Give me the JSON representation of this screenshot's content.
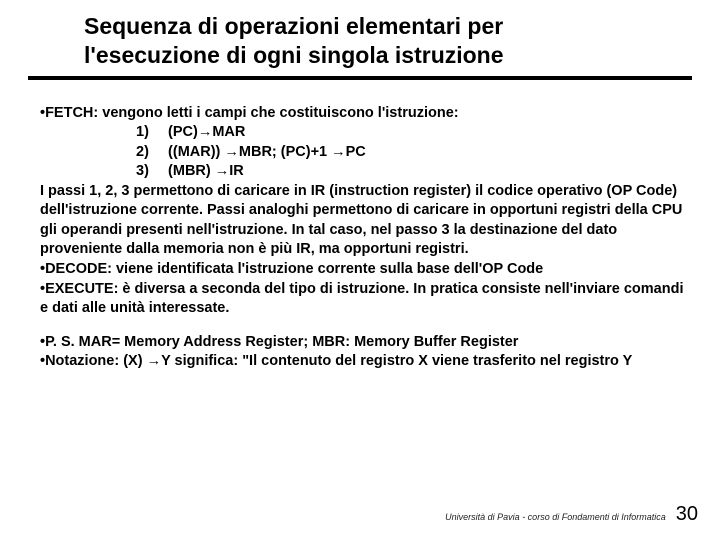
{
  "title_line1": "Sequenza di operazioni elementari per",
  "title_line2": "l'esecuzione di ogni singola istruzione",
  "fetch_intro": "FETCH: vengono letti i campi che costituiscono l'istruzione:",
  "step1_num": "1)",
  "step1_txt": "(PC)→MAR",
  "step2_num": "2)",
  "step2_txt": "((MAR)) →MBR; (PC)+1 →PC",
  "step3_num": "3)",
  "step3_txt": "(MBR) →IR",
  "fetch_para": "I passi 1, 2, 3 permettono di caricare in IR (instruction register) il codice operativo (OP Code) dell'istruzione corrente. Passi analoghi permettono di caricare in opportuni registri della CPU gli operandi presenti nell'istruzione. In tal caso, nel passo 3 la destinazione del dato proveniente dalla memoria non è più IR, ma opportuni registri.",
  "decode_txt": "DECODE: viene identificata l'istruzione corrente sulla base dell'OP Code",
  "execute_txt": "EXECUTE: è diversa a seconda del tipo di istruzione. In pratica consiste nell'inviare comandi e dati alle unità interessate.",
  "ps_txt": "P. S. MAR= Memory Address Register; MBR: Memory Buffer Register",
  "notazione_txt": "Notazione: (X) →Y significa: \"Il contenuto del registro X viene trasferito nel registro Y",
  "footer_txt": "Università di Pavia - corso di Fondamenti di Informatica",
  "page_num": "30",
  "bullet_char": "•"
}
